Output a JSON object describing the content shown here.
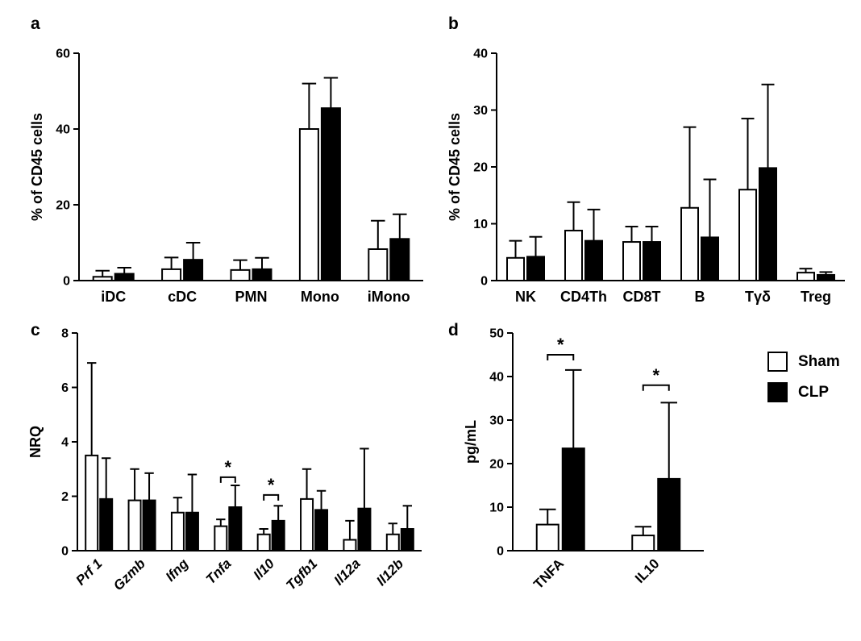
{
  "figure": {
    "background": "#ffffff",
    "bar_outline": "#000000",
    "sham_fill": "#ffffff",
    "clp_fill": "#000000"
  },
  "legend": {
    "items": [
      {
        "label": "Sham",
        "fill": "#ffffff"
      },
      {
        "label": "CLP",
        "fill": "#000000"
      }
    ]
  },
  "chart_data": [
    {
      "type": "bar",
      "panel": "a",
      "ylabel": "% of CD45 cells",
      "xlabel": "",
      "ylim": [
        0,
        60
      ],
      "yticks": [
        0,
        20,
        40,
        60
      ],
      "grid": false,
      "categories": [
        "iDC",
        "cDC",
        "PMN",
        "Mono",
        "iMono"
      ],
      "series": [
        {
          "name": "Sham",
          "values": [
            1.0,
            3.0,
            2.8,
            40.0,
            8.3
          ],
          "errors": [
            1.6,
            3.1,
            2.6,
            12.0,
            7.5
          ]
        },
        {
          "name": "CLP",
          "values": [
            1.8,
            5.5,
            3.0,
            45.5,
            11.0
          ],
          "errors": [
            1.6,
            4.5,
            3.0,
            8.0,
            6.5
          ]
        }
      ],
      "significance": []
    },
    {
      "type": "bar",
      "panel": "b",
      "ylabel": "% of CD45 cells",
      "xlabel": "",
      "ylim": [
        0,
        40
      ],
      "yticks": [
        0,
        10,
        20,
        30,
        40
      ],
      "grid": false,
      "categories": [
        "NK",
        "CD4Th",
        "CD8T",
        "B",
        "Tγδ",
        "Treg"
      ],
      "series": [
        {
          "name": "Sham",
          "values": [
            4.0,
            8.8,
            6.8,
            12.8,
            16.0,
            1.4
          ],
          "errors": [
            3.0,
            5.0,
            2.7,
            14.2,
            12.5,
            0.7
          ]
        },
        {
          "name": "CLP",
          "values": [
            4.2,
            7.0,
            6.8,
            7.6,
            19.8,
            1.0
          ],
          "errors": [
            3.5,
            5.5,
            2.7,
            10.2,
            14.7,
            0.5
          ]
        }
      ],
      "significance": []
    },
    {
      "type": "bar",
      "panel": "c",
      "ylabel": "NRQ",
      "xlabel": "",
      "ylim": [
        0,
        8
      ],
      "yticks": [
        0,
        2,
        4,
        6,
        8
      ],
      "grid": false,
      "italic_categories": true,
      "categories": [
        "Prf 1",
        "Gzmb",
        "Ifng",
        "Tnfa",
        "Il10",
        "Tgfb1",
        "Il12a",
        "Il12b"
      ],
      "series": [
        {
          "name": "Sham",
          "values": [
            3.5,
            1.85,
            1.4,
            0.9,
            0.6,
            1.9,
            0.4,
            0.6
          ],
          "errors": [
            3.4,
            1.15,
            0.55,
            0.25,
            0.2,
            1.1,
            0.7,
            0.4
          ]
        },
        {
          "name": "CLP",
          "values": [
            1.9,
            1.85,
            1.4,
            1.6,
            1.1,
            1.5,
            1.55,
            0.8
          ],
          "errors": [
            1.5,
            1.0,
            1.4,
            0.8,
            0.55,
            0.7,
            2.2,
            0.85
          ]
        }
      ],
      "significance": [
        {
          "category": "Tnfa",
          "label": "*",
          "y": 2.7
        },
        {
          "category": "Il10",
          "label": "*",
          "y": 2.05
        }
      ]
    },
    {
      "type": "bar",
      "panel": "d",
      "ylabel": "pg/mL",
      "xlabel": "",
      "ylim": [
        0,
        50
      ],
      "yticks": [
        0,
        10,
        20,
        30,
        40,
        50
      ],
      "grid": false,
      "categories": [
        "TNFA",
        "IL10"
      ],
      "series": [
        {
          "name": "Sham",
          "values": [
            6.0,
            3.5
          ],
          "errors": [
            3.5,
            2.0
          ]
        },
        {
          "name": "CLP",
          "values": [
            23.5,
            16.5
          ],
          "errors": [
            18.0,
            17.5
          ]
        }
      ],
      "significance": [
        {
          "category": "TNFA",
          "label": "*",
          "y": 45
        },
        {
          "category": "IL10",
          "label": "*",
          "y": 38
        }
      ]
    }
  ]
}
